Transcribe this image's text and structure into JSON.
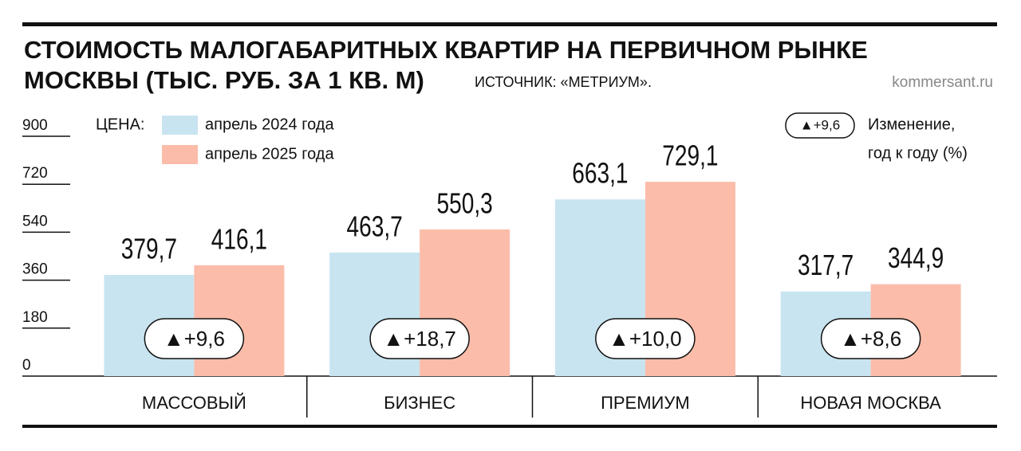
{
  "chart_data": {
    "type": "bar",
    "title": [
      "СТОИМОСТЬ МАЛОГАБАРИТНЫХ КВАРТИР НА ПЕРВИЧНОМ РЫНКЕ",
      "МОСКВЫ (ТЫС. РУБ. ЗА 1 КВ. М)"
    ],
    "source": "ИСТОЧНИК: «МЕТРИУМ».",
    "site": "kommersant.ru",
    "legend_title": "ЦЕНА:",
    "categories": [
      "МАССОВЫЙ",
      "БИЗНЕС",
      "ПРЕМИУМ",
      "НОВАЯ МОСКВА"
    ],
    "series": [
      {
        "name": "апрель 2024 года",
        "color": "#c9e4f1",
        "values": [
          379.7,
          463.7,
          663.1,
          317.7
        ],
        "value_labels": [
          "379,7",
          "463,7",
          "663,1",
          "317,7"
        ]
      },
      {
        "name": "апрель 2025 года",
        "color": "#fbbcaa",
        "values": [
          416.1,
          550.3,
          729.1,
          344.9
        ],
        "value_labels": [
          "416,1",
          "550,3",
          "729,1",
          "344,9"
        ]
      }
    ],
    "changes": {
      "values": [
        9.6,
        18.7,
        10.0,
        8.6
      ],
      "value_labels": [
        "▲+9,6",
        "▲+18,7",
        "▲+10,0",
        "▲+8,6"
      ]
    },
    "change_legend": {
      "sample": "▲+9,6",
      "text": [
        "Изменение,",
        "год к году (%)"
      ]
    },
    "ylim": [
      0,
      900
    ],
    "yticks": [
      0,
      180,
      360,
      540,
      720,
      900
    ]
  }
}
